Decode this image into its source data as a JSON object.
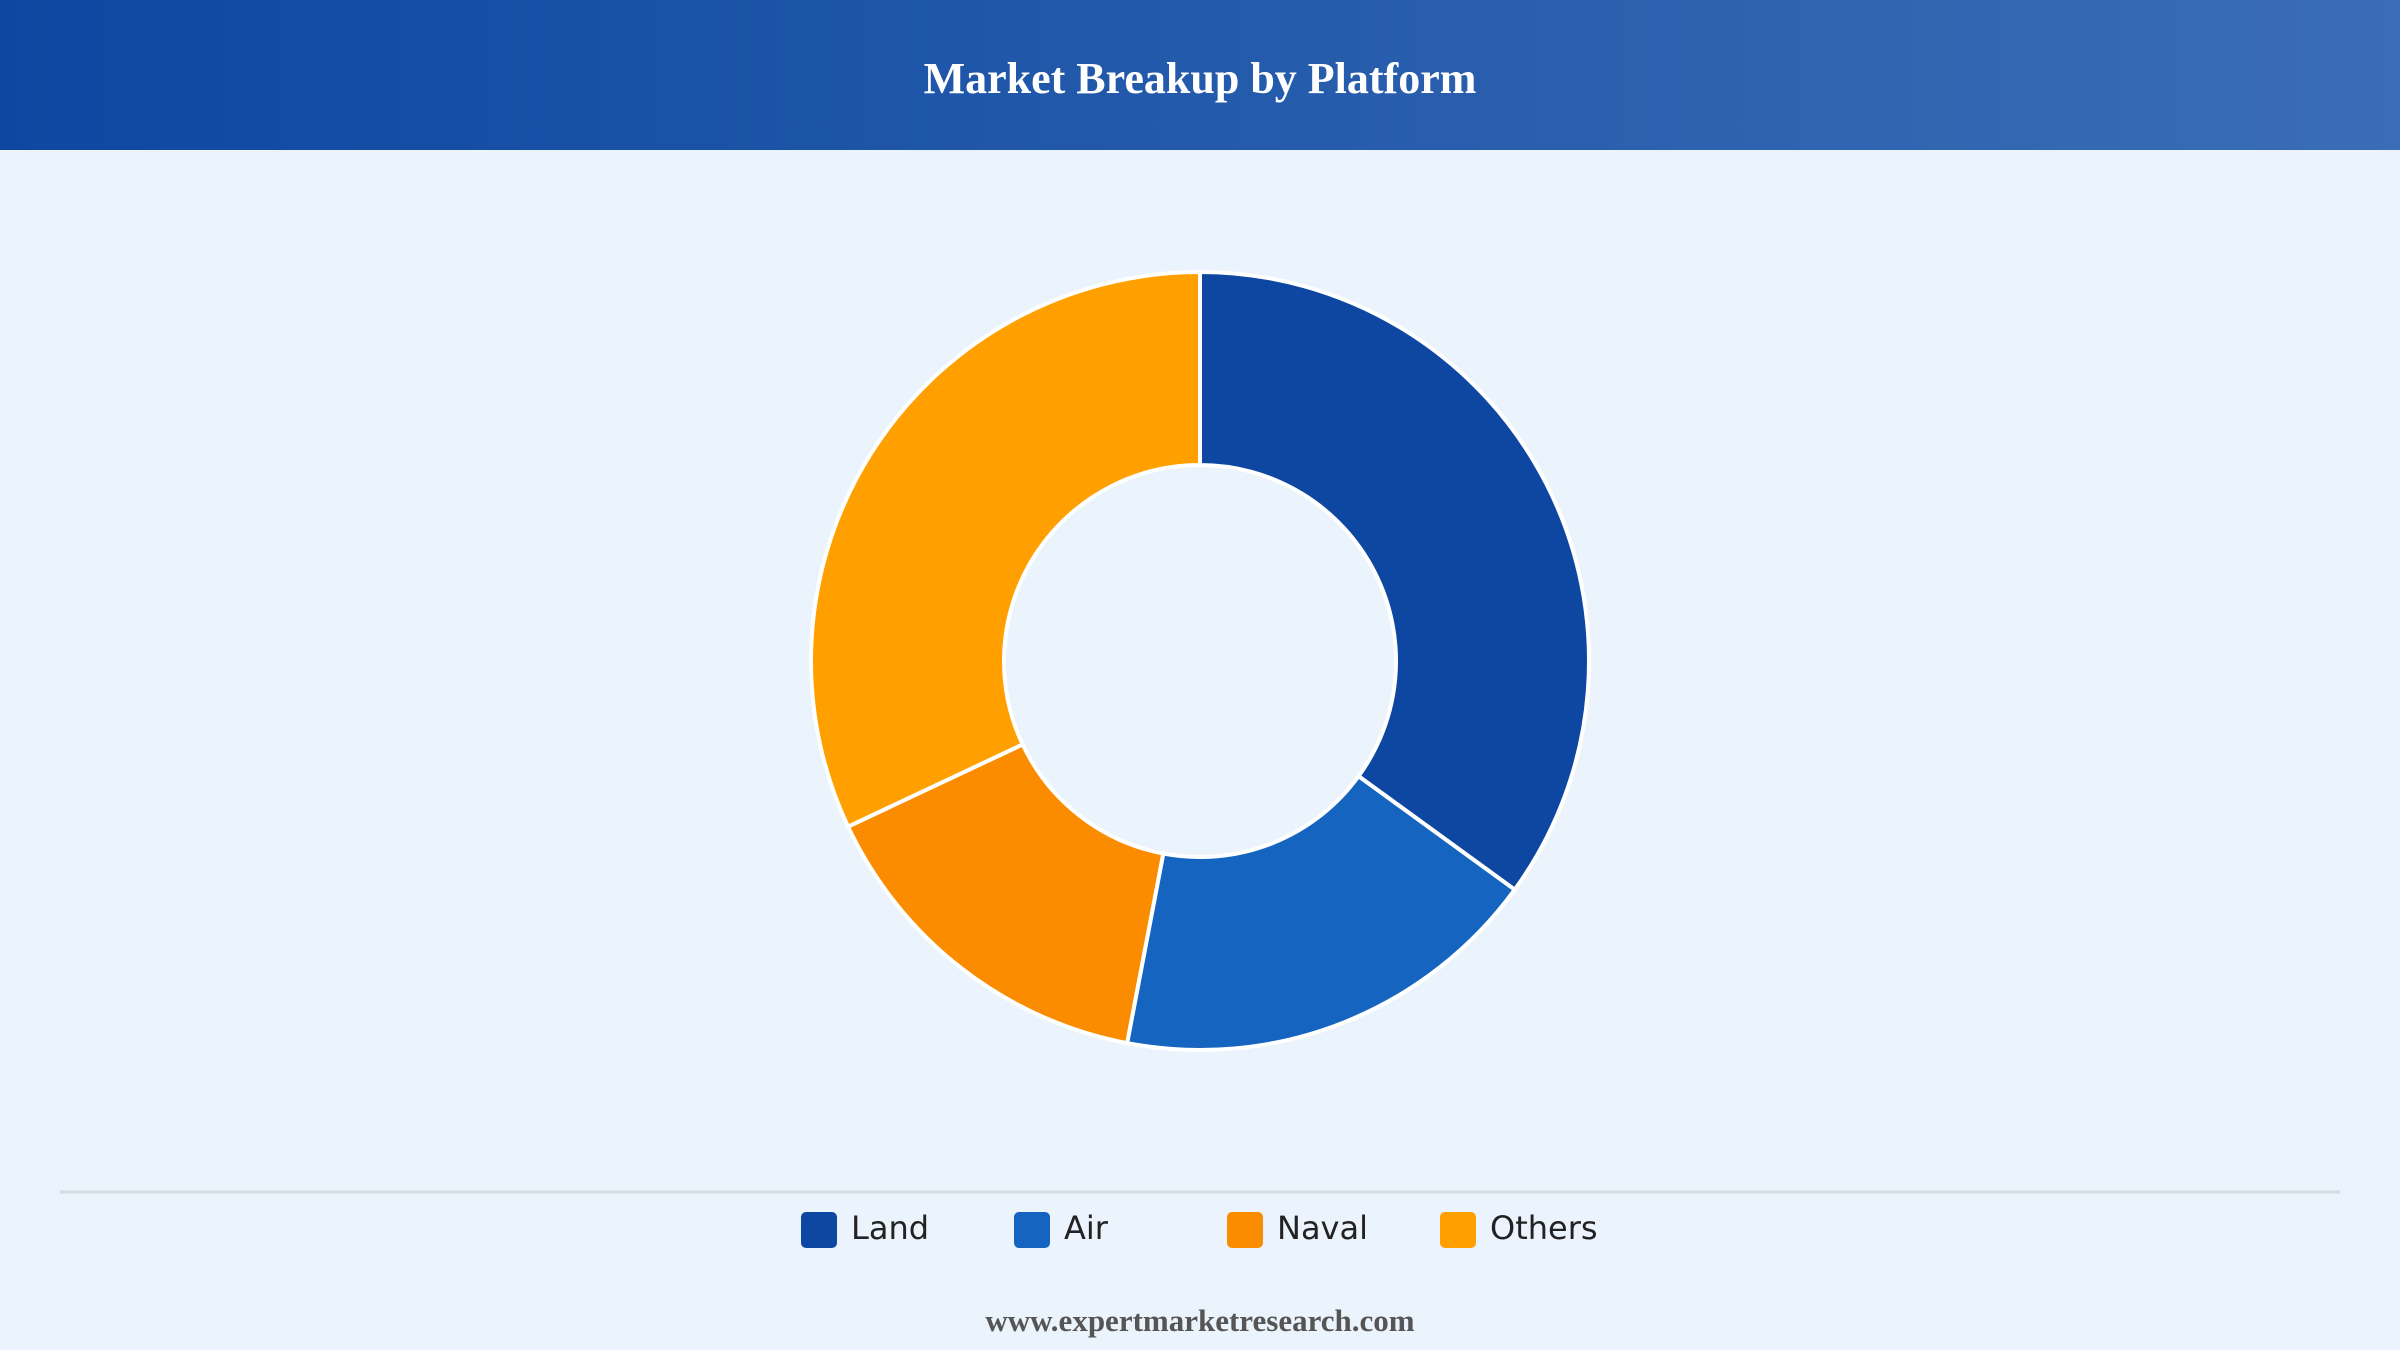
{
  "chart_data": {
    "type": "donut",
    "title": "Market Breakup by Platform",
    "categories": [
      "Land",
      "Air",
      "Naval",
      "Others"
    ],
    "values": [
      35,
      18,
      15,
      32
    ],
    "colors": [
      "#0d47a1",
      "#1565c0",
      "#fb8c00",
      "#ffa000"
    ],
    "legend": "bottom",
    "source": "www.expertmarketresearch.com"
  }
}
